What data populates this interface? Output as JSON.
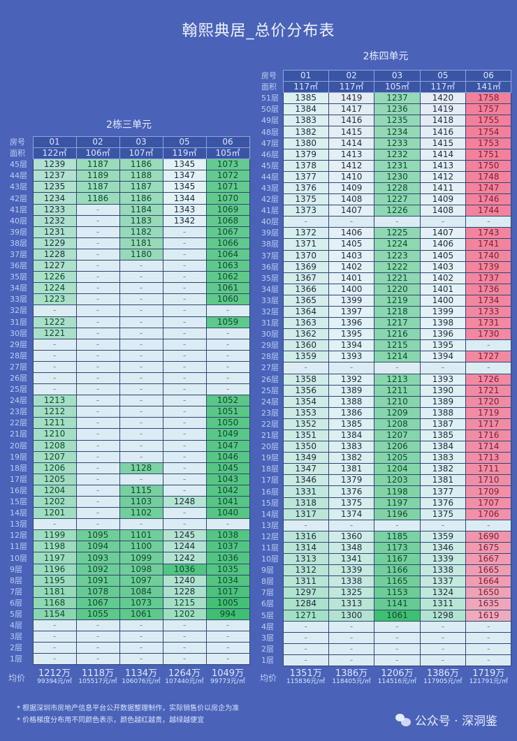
{
  "title": "翰熙典居_总价分布表",
  "labels": {
    "room": "房号",
    "area": "面积",
    "avg": "均价"
  },
  "color_scale": {
    "low": "#3fbf72",
    "mid": "#e4f2f8",
    "high": "#f37f9a"
  },
  "tables": [
    {
      "name": "2栋三单元",
      "rooms": [
        "01",
        "02",
        "03",
        "05",
        "06"
      ],
      "areas": [
        "122㎡",
        "106㎡",
        "107㎡",
        "119㎡",
        "105㎡"
      ],
      "rows": [
        {
          "floor": "45层",
          "values": [
            "1239",
            "1187",
            "1186",
            "1345",
            "1073"
          ]
        },
        {
          "floor": "44层",
          "values": [
            "1237",
            "1189",
            "1188",
            "1347",
            "1072"
          ]
        },
        {
          "floor": "43层",
          "values": [
            "1235",
            "1187",
            "1187",
            "1345",
            "1071"
          ]
        },
        {
          "floor": "42层",
          "values": [
            "1234",
            "1186",
            "1186",
            "1344",
            "1070"
          ]
        },
        {
          "floor": "41层",
          "values": [
            "1233",
            "-",
            "1184",
            "1343",
            "1069"
          ]
        },
        {
          "floor": "40层",
          "values": [
            "1232",
            "-",
            "1183",
            "1342",
            "1068"
          ]
        },
        {
          "floor": "39层",
          "values": [
            "1231",
            "-",
            "1182",
            "-",
            "1067"
          ]
        },
        {
          "floor": "38层",
          "values": [
            "1229",
            "-",
            "1181",
            "-",
            "1066"
          ]
        },
        {
          "floor": "37层",
          "values": [
            "1228",
            "-",
            "1180",
            "-",
            "1064"
          ]
        },
        {
          "floor": "36层",
          "values": [
            "1227",
            "-",
            "-",
            "-",
            "1063"
          ]
        },
        {
          "floor": "35层",
          "values": [
            "1226",
            "-",
            "-",
            "-",
            "1062"
          ]
        },
        {
          "floor": "34层",
          "values": [
            "1224",
            "-",
            "-",
            "-",
            "1061"
          ]
        },
        {
          "floor": "33层",
          "values": [
            "1223",
            "-",
            "-",
            "-",
            "1060"
          ]
        },
        {
          "floor": "32层",
          "values": [
            "-",
            "-",
            "-",
            "-",
            "-"
          ]
        },
        {
          "floor": "31层",
          "values": [
            "1222",
            "-",
            "-",
            "-",
            "1059"
          ]
        },
        {
          "floor": "30层",
          "values": [
            "1221",
            "-",
            "-",
            "-",
            "-"
          ]
        },
        {
          "floor": "29层",
          "values": [
            "-",
            "-",
            "-",
            "-",
            "-"
          ]
        },
        {
          "floor": "28层",
          "values": [
            "-",
            "-",
            "-",
            "-",
            "-"
          ]
        },
        {
          "floor": "27层",
          "values": [
            "-",
            "-",
            "-",
            "-",
            "-"
          ]
        },
        {
          "floor": "26层",
          "values": [
            "-",
            "-",
            "-",
            "-",
            "-"
          ]
        },
        {
          "floor": "25层",
          "values": [
            "-",
            "-",
            "-",
            "-",
            "-"
          ]
        },
        {
          "floor": "24层",
          "values": [
            "1213",
            "-",
            "-",
            "-",
            "1052"
          ]
        },
        {
          "floor": "23层",
          "values": [
            "1212",
            "-",
            "-",
            "-",
            "1051"
          ]
        },
        {
          "floor": "22层",
          "values": [
            "1211",
            "-",
            "-",
            "-",
            "1050"
          ]
        },
        {
          "floor": "21层",
          "values": [
            "1210",
            "-",
            "-",
            "-",
            "1049"
          ]
        },
        {
          "floor": "20层",
          "values": [
            "1208",
            "-",
            "-",
            "-",
            "1047"
          ]
        },
        {
          "floor": "19层",
          "values": [
            "1207",
            "-",
            "-",
            "-",
            "1046"
          ]
        },
        {
          "floor": "18层",
          "values": [
            "1206",
            "-",
            "1128",
            "-",
            "1045"
          ]
        },
        {
          "floor": "17层",
          "values": [
            "1205",
            "-",
            "-",
            "-",
            "1043"
          ]
        },
        {
          "floor": "16层",
          "values": [
            "1204",
            "-",
            "1115",
            "-",
            "1042"
          ]
        },
        {
          "floor": "15层",
          "values": [
            "1202",
            "-",
            "1103",
            "1248",
            "1041"
          ]
        },
        {
          "floor": "14层",
          "values": [
            "1201",
            "-",
            "1102",
            "-",
            "1040"
          ]
        },
        {
          "floor": "13层",
          "values": [
            "-",
            "-",
            "-",
            "-",
            "-"
          ]
        },
        {
          "floor": "12层",
          "values": [
            "1199",
            "1095",
            "1101",
            "1245",
            "1038"
          ]
        },
        {
          "floor": "11层",
          "values": [
            "1198",
            "1094",
            "1100",
            "1244",
            "1037"
          ]
        },
        {
          "floor": "10层",
          "values": [
            "1197",
            "1093",
            "1099",
            "1242",
            "1036"
          ]
        },
        {
          "floor": "9层",
          "values": [
            "1196",
            "1092",
            "1098",
            "1036",
            "1035"
          ]
        },
        {
          "floor": "8层",
          "values": [
            "1195",
            "1091",
            "1097",
            "1240",
            "1034"
          ]
        },
        {
          "floor": "7层",
          "values": [
            "1181",
            "1078",
            "1084",
            "1228",
            "1017"
          ]
        },
        {
          "floor": "6层",
          "values": [
            "1168",
            "1067",
            "1073",
            "1215",
            "1005"
          ]
        },
        {
          "floor": "5层",
          "values": [
            "1154",
            "1055",
            "1061",
            "1202",
            "994"
          ]
        },
        {
          "floor": "4层",
          "values": [
            "-",
            "-",
            "-",
            "-",
            "-"
          ]
        },
        {
          "floor": "3层",
          "values": [
            "-",
            "-",
            "-",
            "-",
            "-"
          ]
        },
        {
          "floor": "2层",
          "values": [
            "-",
            "-",
            "-",
            "-",
            "-"
          ]
        },
        {
          "floor": "1层",
          "values": [
            "-",
            "-",
            "-",
            "-",
            "-"
          ]
        }
      ],
      "averages": [
        {
          "total": "1212万",
          "per_sqm": "99394元/㎡"
        },
        {
          "total": "1118万",
          "per_sqm": "105517元/㎡"
        },
        {
          "total": "1134万",
          "per_sqm": "106076元/㎡"
        },
        {
          "total": "1264万",
          "per_sqm": "107440元/㎡"
        },
        {
          "total": "1049万",
          "per_sqm": "99773元/㎡"
        }
      ]
    },
    {
      "name": "2栋四单元",
      "rooms": [
        "01",
        "02",
        "03",
        "05",
        "06"
      ],
      "areas": [
        "117㎡",
        "117㎡",
        "105㎡",
        "117㎡",
        "141㎡"
      ],
      "rows": [
        {
          "floor": "51层",
          "values": [
            "1385",
            "1419",
            "1237",
            "1420",
            "1758"
          ]
        },
        {
          "floor": "50层",
          "values": [
            "1384",
            "1417",
            "1236",
            "1419",
            "1757"
          ]
        },
        {
          "floor": "49层",
          "values": [
            "1383",
            "1416",
            "1235",
            "1418",
            "1755"
          ]
        },
        {
          "floor": "48层",
          "values": [
            "1382",
            "1415",
            "1234",
            "1416",
            "1754"
          ]
        },
        {
          "floor": "47层",
          "values": [
            "1380",
            "1414",
            "1233",
            "1415",
            "1753"
          ]
        },
        {
          "floor": "46层",
          "values": [
            "1379",
            "1413",
            "1232",
            "1414",
            "1751"
          ]
        },
        {
          "floor": "45层",
          "values": [
            "1378",
            "1412",
            "1231",
            "1413",
            "1750"
          ]
        },
        {
          "floor": "44层",
          "values": [
            "1377",
            "1410",
            "1230",
            "1412",
            "1748"
          ]
        },
        {
          "floor": "43层",
          "values": [
            "1376",
            "1409",
            "1228",
            "1411",
            "1747"
          ]
        },
        {
          "floor": "42层",
          "values": [
            "1375",
            "1408",
            "1227",
            "1409",
            "1746"
          ]
        },
        {
          "floor": "41层",
          "values": [
            "1373",
            "1407",
            "1226",
            "1408",
            "1744"
          ]
        },
        {
          "floor": "40层",
          "values": [
            "-",
            "-",
            "-",
            "-",
            "-"
          ]
        },
        {
          "floor": "39层",
          "values": [
            "1372",
            "1406",
            "1225",
            "1407",
            "1743"
          ]
        },
        {
          "floor": "38层",
          "values": [
            "1371",
            "1405",
            "1224",
            "1406",
            "1741"
          ]
        },
        {
          "floor": "37层",
          "values": [
            "1370",
            "1403",
            "1223",
            "1405",
            "1740"
          ]
        },
        {
          "floor": "36层",
          "values": [
            "1369",
            "1402",
            "1222",
            "1403",
            "1739"
          ]
        },
        {
          "floor": "35层",
          "values": [
            "1367",
            "1401",
            "1221",
            "1402",
            "1737"
          ]
        },
        {
          "floor": "34层",
          "values": [
            "1366",
            "1400",
            "1220",
            "1401",
            "1736"
          ]
        },
        {
          "floor": "33层",
          "values": [
            "1365",
            "1399",
            "1219",
            "1400",
            "1734"
          ]
        },
        {
          "floor": "32层",
          "values": [
            "1364",
            "1397",
            "1218",
            "1399",
            "1733"
          ]
        },
        {
          "floor": "31层",
          "values": [
            "1363",
            "1396",
            "1217",
            "1398",
            "1731"
          ]
        },
        {
          "floor": "30层",
          "values": [
            "1362",
            "1395",
            "1216",
            "1396",
            "1730"
          ]
        },
        {
          "floor": "29层",
          "values": [
            "1360",
            "1394",
            "1215",
            "1395",
            "-"
          ]
        },
        {
          "floor": "28层",
          "values": [
            "1359",
            "1393",
            "1214",
            "1394",
            "1727"
          ]
        },
        {
          "floor": "27层",
          "values": [
            "-",
            "-",
            "-",
            "-",
            "-"
          ]
        },
        {
          "floor": "26层",
          "values": [
            "1358",
            "1392",
            "1213",
            "1393",
            "1726"
          ]
        },
        {
          "floor": "25层",
          "values": [
            "1356",
            "1389",
            "1211",
            "1390",
            "1721"
          ]
        },
        {
          "floor": "24层",
          "values": [
            "1354",
            "1388",
            "1210",
            "1389",
            "1720"
          ]
        },
        {
          "floor": "23层",
          "values": [
            "1353",
            "1386",
            "1209",
            "1388",
            "1719"
          ]
        },
        {
          "floor": "22层",
          "values": [
            "1352",
            "1385",
            "1208",
            "1387",
            "1717"
          ]
        },
        {
          "floor": "21层",
          "values": [
            "1351",
            "1384",
            "1207",
            "1385",
            "1716"
          ]
        },
        {
          "floor": "20层",
          "values": [
            "1350",
            "1383",
            "1206",
            "1384",
            "1714"
          ]
        },
        {
          "floor": "19层",
          "values": [
            "1349",
            "1382",
            "1205",
            "1383",
            "1713"
          ]
        },
        {
          "floor": "18层",
          "values": [
            "1347",
            "1381",
            "1204",
            "1382",
            "1711"
          ]
        },
        {
          "floor": "17层",
          "values": [
            "1346",
            "1379",
            "1203",
            "1381",
            "1710"
          ]
        },
        {
          "floor": "16层",
          "values": [
            "1331",
            "1376",
            "1198",
            "1377",
            "1709"
          ]
        },
        {
          "floor": "15层",
          "values": [
            "1318",
            "1375",
            "1197",
            "1376",
            "1707"
          ]
        },
        {
          "floor": "14层",
          "values": [
            "1317",
            "1374",
            "1196",
            "1375",
            "1706"
          ]
        },
        {
          "floor": "13层",
          "values": [
            "-",
            "-",
            "-",
            "-",
            "-"
          ]
        },
        {
          "floor": "12层",
          "values": [
            "1316",
            "1360",
            "1185",
            "1359",
            "1690"
          ]
        },
        {
          "floor": "11层",
          "values": [
            "1314",
            "1348",
            "1173",
            "1346",
            "1675"
          ]
        },
        {
          "floor": "10层",
          "values": [
            "1313",
            "1341",
            "1167",
            "1339",
            "1667"
          ]
        },
        {
          "floor": "9层",
          "values": [
            "1312",
            "1339",
            "1166",
            "1338",
            "1665"
          ]
        },
        {
          "floor": "8层",
          "values": [
            "1311",
            "1338",
            "1165",
            "1337",
            "1664"
          ]
        },
        {
          "floor": "7层",
          "values": [
            "1297",
            "1325",
            "1153",
            "1324",
            "1650"
          ]
        },
        {
          "floor": "6层",
          "values": [
            "1284",
            "1313",
            "1141",
            "1311",
            "1635"
          ]
        },
        {
          "floor": "5层",
          "values": [
            "1271",
            "1300",
            "1061",
            "1298",
            "1619"
          ]
        },
        {
          "floor": "4层",
          "values": [
            "-",
            "-",
            "-",
            "-",
            "-"
          ]
        },
        {
          "floor": "3层",
          "values": [
            "-",
            "-",
            "-",
            "-",
            "-"
          ]
        },
        {
          "floor": "2层",
          "values": [
            "-",
            "-",
            "-",
            "-",
            "-"
          ]
        },
        {
          "floor": "1层",
          "values": [
            "-",
            "-",
            "-",
            "-",
            "-"
          ]
        }
      ],
      "averages": [
        {
          "total": "1351万",
          "per_sqm": "115836元/㎡"
        },
        {
          "total": "1386万",
          "per_sqm": "118405元/㎡"
        },
        {
          "total": "1206万",
          "per_sqm": "114516元/㎡"
        },
        {
          "total": "1386万",
          "per_sqm": "117905元/㎡"
        },
        {
          "total": "1719万",
          "per_sqm": "121791元/㎡"
        }
      ]
    }
  ],
  "notes": [
    "* 根据深圳市房地产信息平台公开数据整理制作，实际销售价以房企为准",
    "* 价格梯度分布用不同颜色表示，颜色越红越贵，越绿越便宜"
  ],
  "watermark": {
    "icon": "wechat-icon",
    "text": "公众号 · 深洞鉴"
  }
}
